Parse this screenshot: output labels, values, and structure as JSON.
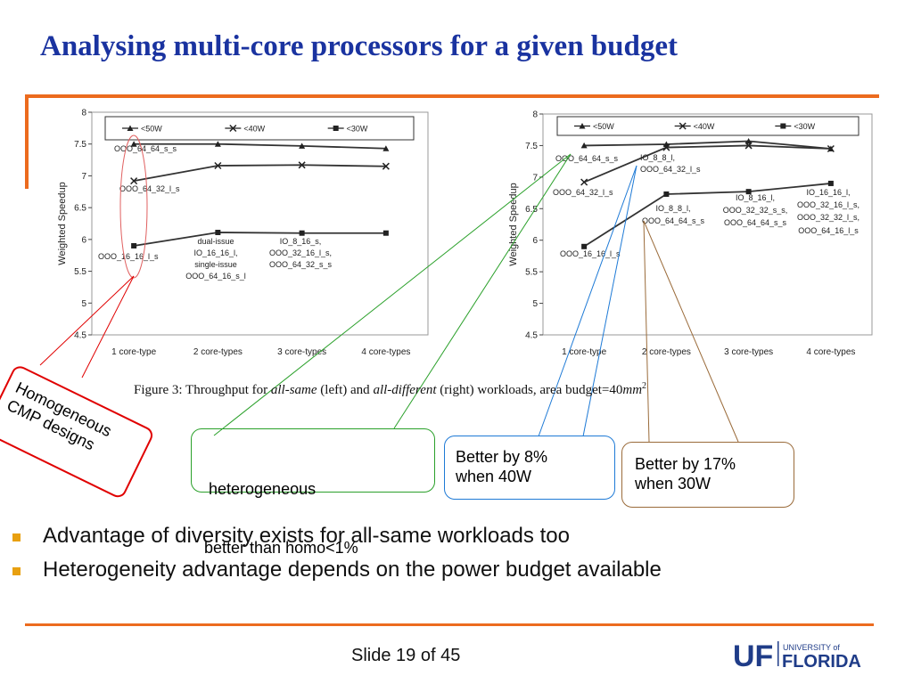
{
  "slide": {
    "title": "Analysing multi-core processors for a given budget",
    "footer": "Slide 19 of 45",
    "accent_color": "#ec6b1e",
    "title_color": "#1a33a0"
  },
  "caption": {
    "prefix": "Figure 3: Throughput for ",
    "italic1": "all-same",
    "mid1": " (left) and ",
    "italic2": "all-different",
    "mid2": " (right) workloads, area budget=40",
    "unit": "mm",
    "exp": "2"
  },
  "chart_data": [
    {
      "type": "line",
      "ylabel": "Weighted Speedup",
      "ylim": [
        4.5,
        8
      ],
      "yticks": [
        "8",
        "7.5",
        "7",
        "6.5",
        "6",
        "5.5",
        "5",
        "4.5"
      ],
      "categories": [
        "1 core-type",
        "2 core-types",
        "3 core-types",
        "4 core-types"
      ],
      "legend": [
        "<50W",
        "<40W",
        "<30W"
      ],
      "series": [
        {
          "name": "<50W",
          "values": [
            7.5,
            7.5,
            7.47,
            7.43
          ]
        },
        {
          "name": "<40W",
          "values": [
            6.92,
            7.16,
            7.17,
            7.15
          ]
        },
        {
          "name": "<30W",
          "values": [
            5.9,
            6.11,
            6.1,
            6.1
          ]
        }
      ],
      "annotations": [
        "OOO_64_64_s_s",
        "OOO_64_32_l_s",
        "OOO_16_16_l_s",
        "dual-issue",
        "IO_16_16_l,",
        "single-issue",
        "OOO_64_16_s_l",
        "IO_8_16_s,",
        "OOO_32_16_l_s,",
        "OOO_64_32_s_s"
      ]
    },
    {
      "type": "line",
      "ylabel": "Weighted Speedup",
      "ylim": [
        4.5,
        8
      ],
      "yticks": [
        "8",
        "7.5",
        "7",
        "6.5",
        "6",
        "5.5",
        "5",
        "4.5"
      ],
      "categories": [
        "1 core-type",
        "2 core-types",
        "3 core-types",
        "4 core-types"
      ],
      "legend": [
        "<50W",
        "<40W",
        "<30W"
      ],
      "series": [
        {
          "name": "<50W",
          "values": [
            7.5,
            7.52,
            7.57,
            7.45
          ]
        },
        {
          "name": "<40W",
          "values": [
            6.92,
            7.47,
            7.5,
            7.45
          ]
        },
        {
          "name": "<30W",
          "values": [
            5.9,
            6.73,
            6.77,
            6.9
          ]
        }
      ],
      "annotations": [
        "OOO_64_64_s_s",
        "IO_8_8_l,",
        "OOO_64_32_l_s",
        "OOO_64_32_l_s",
        "IO_16_16_l,",
        "OOO_32_16_l_s,",
        "OOO_32_32_l_s,",
        "OOO_64_16_l_s",
        "IO_8_16_l,",
        "OOO_32_32_s_s,",
        "OOO_64_64_s_s",
        "IO_8_8_l,",
        "OOO_64_64_s_s",
        "OOO_16_16_l_s"
      ]
    }
  ],
  "callouts": {
    "homogeneous": [
      "Homogeneous",
      "CMP designs"
    ],
    "heterogeneous": [
      " heterogeneous",
      "better than homo<1%"
    ],
    "better8": [
      "Better by 8%",
      "when 40W"
    ],
    "better17": [
      "Better by 17%",
      "when 30W"
    ],
    "colors": {
      "red": "#e00000",
      "green": "#2aa02a",
      "blue": "#1e7ad6",
      "brown": "#9a6b3a"
    }
  },
  "bullets": [
    "Advantage of diversity exists for all-same workloads too",
    "Heterogeneity advantage depends on the power budget available"
  ],
  "logo": {
    "mark": "UF",
    "line1": "UNIVERSITY of",
    "line2": "FLORIDA"
  }
}
